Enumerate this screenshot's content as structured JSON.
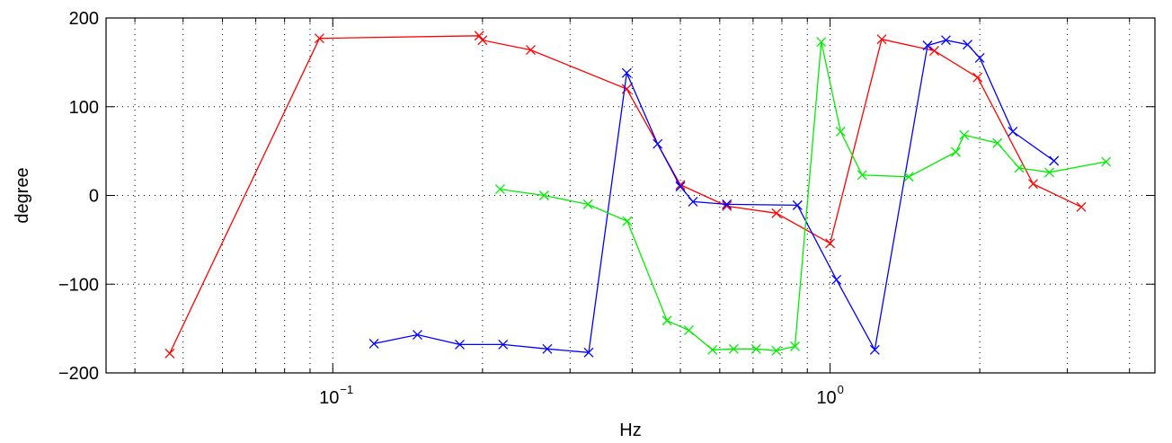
{
  "chart_data": {
    "type": "line",
    "title": "",
    "xlabel": "Hz",
    "ylabel": "degree",
    "x_scale": "log",
    "xlim": [
      0.035,
      4.5
    ],
    "ylim": [
      -200,
      200
    ],
    "x_ticks": [
      {
        "value": 0.1,
        "base": "10",
        "exp": "−1"
      },
      {
        "value": 1,
        "base": "10",
        "exp": "0"
      }
    ],
    "y_ticks": [
      {
        "value": -200,
        "label": "−200"
      },
      {
        "value": -100,
        "label": "−100"
      },
      {
        "value": 0,
        "label": "0"
      },
      {
        "value": 100,
        "label": "100"
      },
      {
        "value": 200,
        "label": "200"
      }
    ],
    "grid": true,
    "marker": "x",
    "series": [
      {
        "color": "#ff0000",
        "points": [
          [
            0.047,
            -178
          ],
          [
            0.094,
            177
          ],
          [
            0.197,
            180
          ],
          [
            0.2,
            175
          ],
          [
            0.25,
            164
          ],
          [
            0.39,
            120
          ],
          [
            0.5,
            12
          ],
          [
            0.62,
            -12
          ],
          [
            0.78,
            -20
          ],
          [
            1.0,
            -54
          ],
          [
            1.27,
            176
          ],
          [
            1.62,
            163
          ],
          [
            1.98,
            133
          ],
          [
            2.56,
            13
          ],
          [
            3.2,
            -13
          ]
        ]
      },
      {
        "color": "#0000ff",
        "points": [
          [
            0.121,
            -167
          ],
          [
            0.148,
            -157
          ],
          [
            0.18,
            -168
          ],
          [
            0.22,
            -168
          ],
          [
            0.27,
            -173
          ],
          [
            0.327,
            -177
          ],
          [
            0.39,
            138
          ],
          [
            0.45,
            58
          ],
          [
            0.5,
            10
          ],
          [
            0.53,
            -7
          ],
          [
            0.62,
            -10
          ],
          [
            0.86,
            -11
          ],
          [
            1.03,
            -95
          ],
          [
            1.23,
            -174
          ],
          [
            1.57,
            169
          ],
          [
            1.71,
            175
          ],
          [
            1.89,
            170
          ],
          [
            2.0,
            155
          ],
          [
            2.33,
            72
          ],
          [
            2.82,
            39
          ]
        ]
      },
      {
        "color": "#00ee00",
        "points": [
          [
            0.217,
            7
          ],
          [
            0.266,
            0
          ],
          [
            0.326,
            -10
          ],
          [
            0.391,
            -29
          ],
          [
            0.47,
            -141
          ],
          [
            0.52,
            -152
          ],
          [
            0.58,
            -174
          ],
          [
            0.64,
            -173
          ],
          [
            0.71,
            -173
          ],
          [
            0.78,
            -175
          ],
          [
            0.85,
            -170
          ],
          [
            0.96,
            173
          ],
          [
            1.05,
            72
          ],
          [
            1.16,
            23
          ],
          [
            1.44,
            21
          ],
          [
            1.79,
            49
          ],
          [
            1.86,
            68
          ],
          [
            2.17,
            59
          ],
          [
            2.4,
            31
          ],
          [
            2.76,
            26
          ],
          [
            3.59,
            38
          ]
        ]
      }
    ]
  }
}
